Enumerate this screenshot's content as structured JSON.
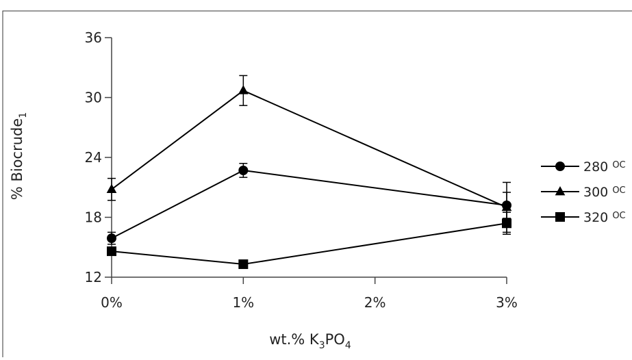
{
  "chart_data": {
    "type": "line",
    "x": [
      0,
      1,
      2,
      3
    ],
    "xticklabels": [
      "0%",
      "1%",
      "2%",
      "3%"
    ],
    "xlim": [
      0,
      3
    ],
    "ylim": [
      12,
      36
    ],
    "yticks": [
      12,
      18,
      24,
      30,
      36
    ],
    "yticklabels": [
      "12",
      "18",
      "24",
      "30",
      "36"
    ],
    "xlabel_main": "wt.% K",
    "xlabel_sub1": "3",
    "xlabel_mid": "PO",
    "xlabel_sub2": "4",
    "ylabel_main": "% Biocrude",
    "ylabel_sub": "1",
    "legend_position": "right",
    "series": [
      {
        "name": "280 ",
        "name_sup": "O",
        "name_unit": "C",
        "marker": "circle",
        "x": [
          0,
          1,
          3
        ],
        "y": [
          15.9,
          22.7,
          19.2
        ],
        "error": [
          0.6,
          0.7,
          1.3
        ]
      },
      {
        "name": "300 ",
        "name_sup": "O",
        "name_unit": "C",
        "marker": "triangle",
        "x": [
          0,
          1,
          3
        ],
        "y": [
          20.8,
          30.7,
          19.0
        ],
        "error": [
          1.1,
          1.5,
          2.5
        ]
      },
      {
        "name": "320 ",
        "name_sup": "O",
        "name_unit": "C",
        "marker": "square",
        "x": [
          0,
          1,
          3
        ],
        "y": [
          14.6,
          13.3,
          17.4
        ],
        "error": [
          0.3,
          0.3,
          1.1
        ]
      }
    ],
    "colors": {
      "line": "#000000",
      "axis": "#444444",
      "frame": "#333333"
    }
  }
}
